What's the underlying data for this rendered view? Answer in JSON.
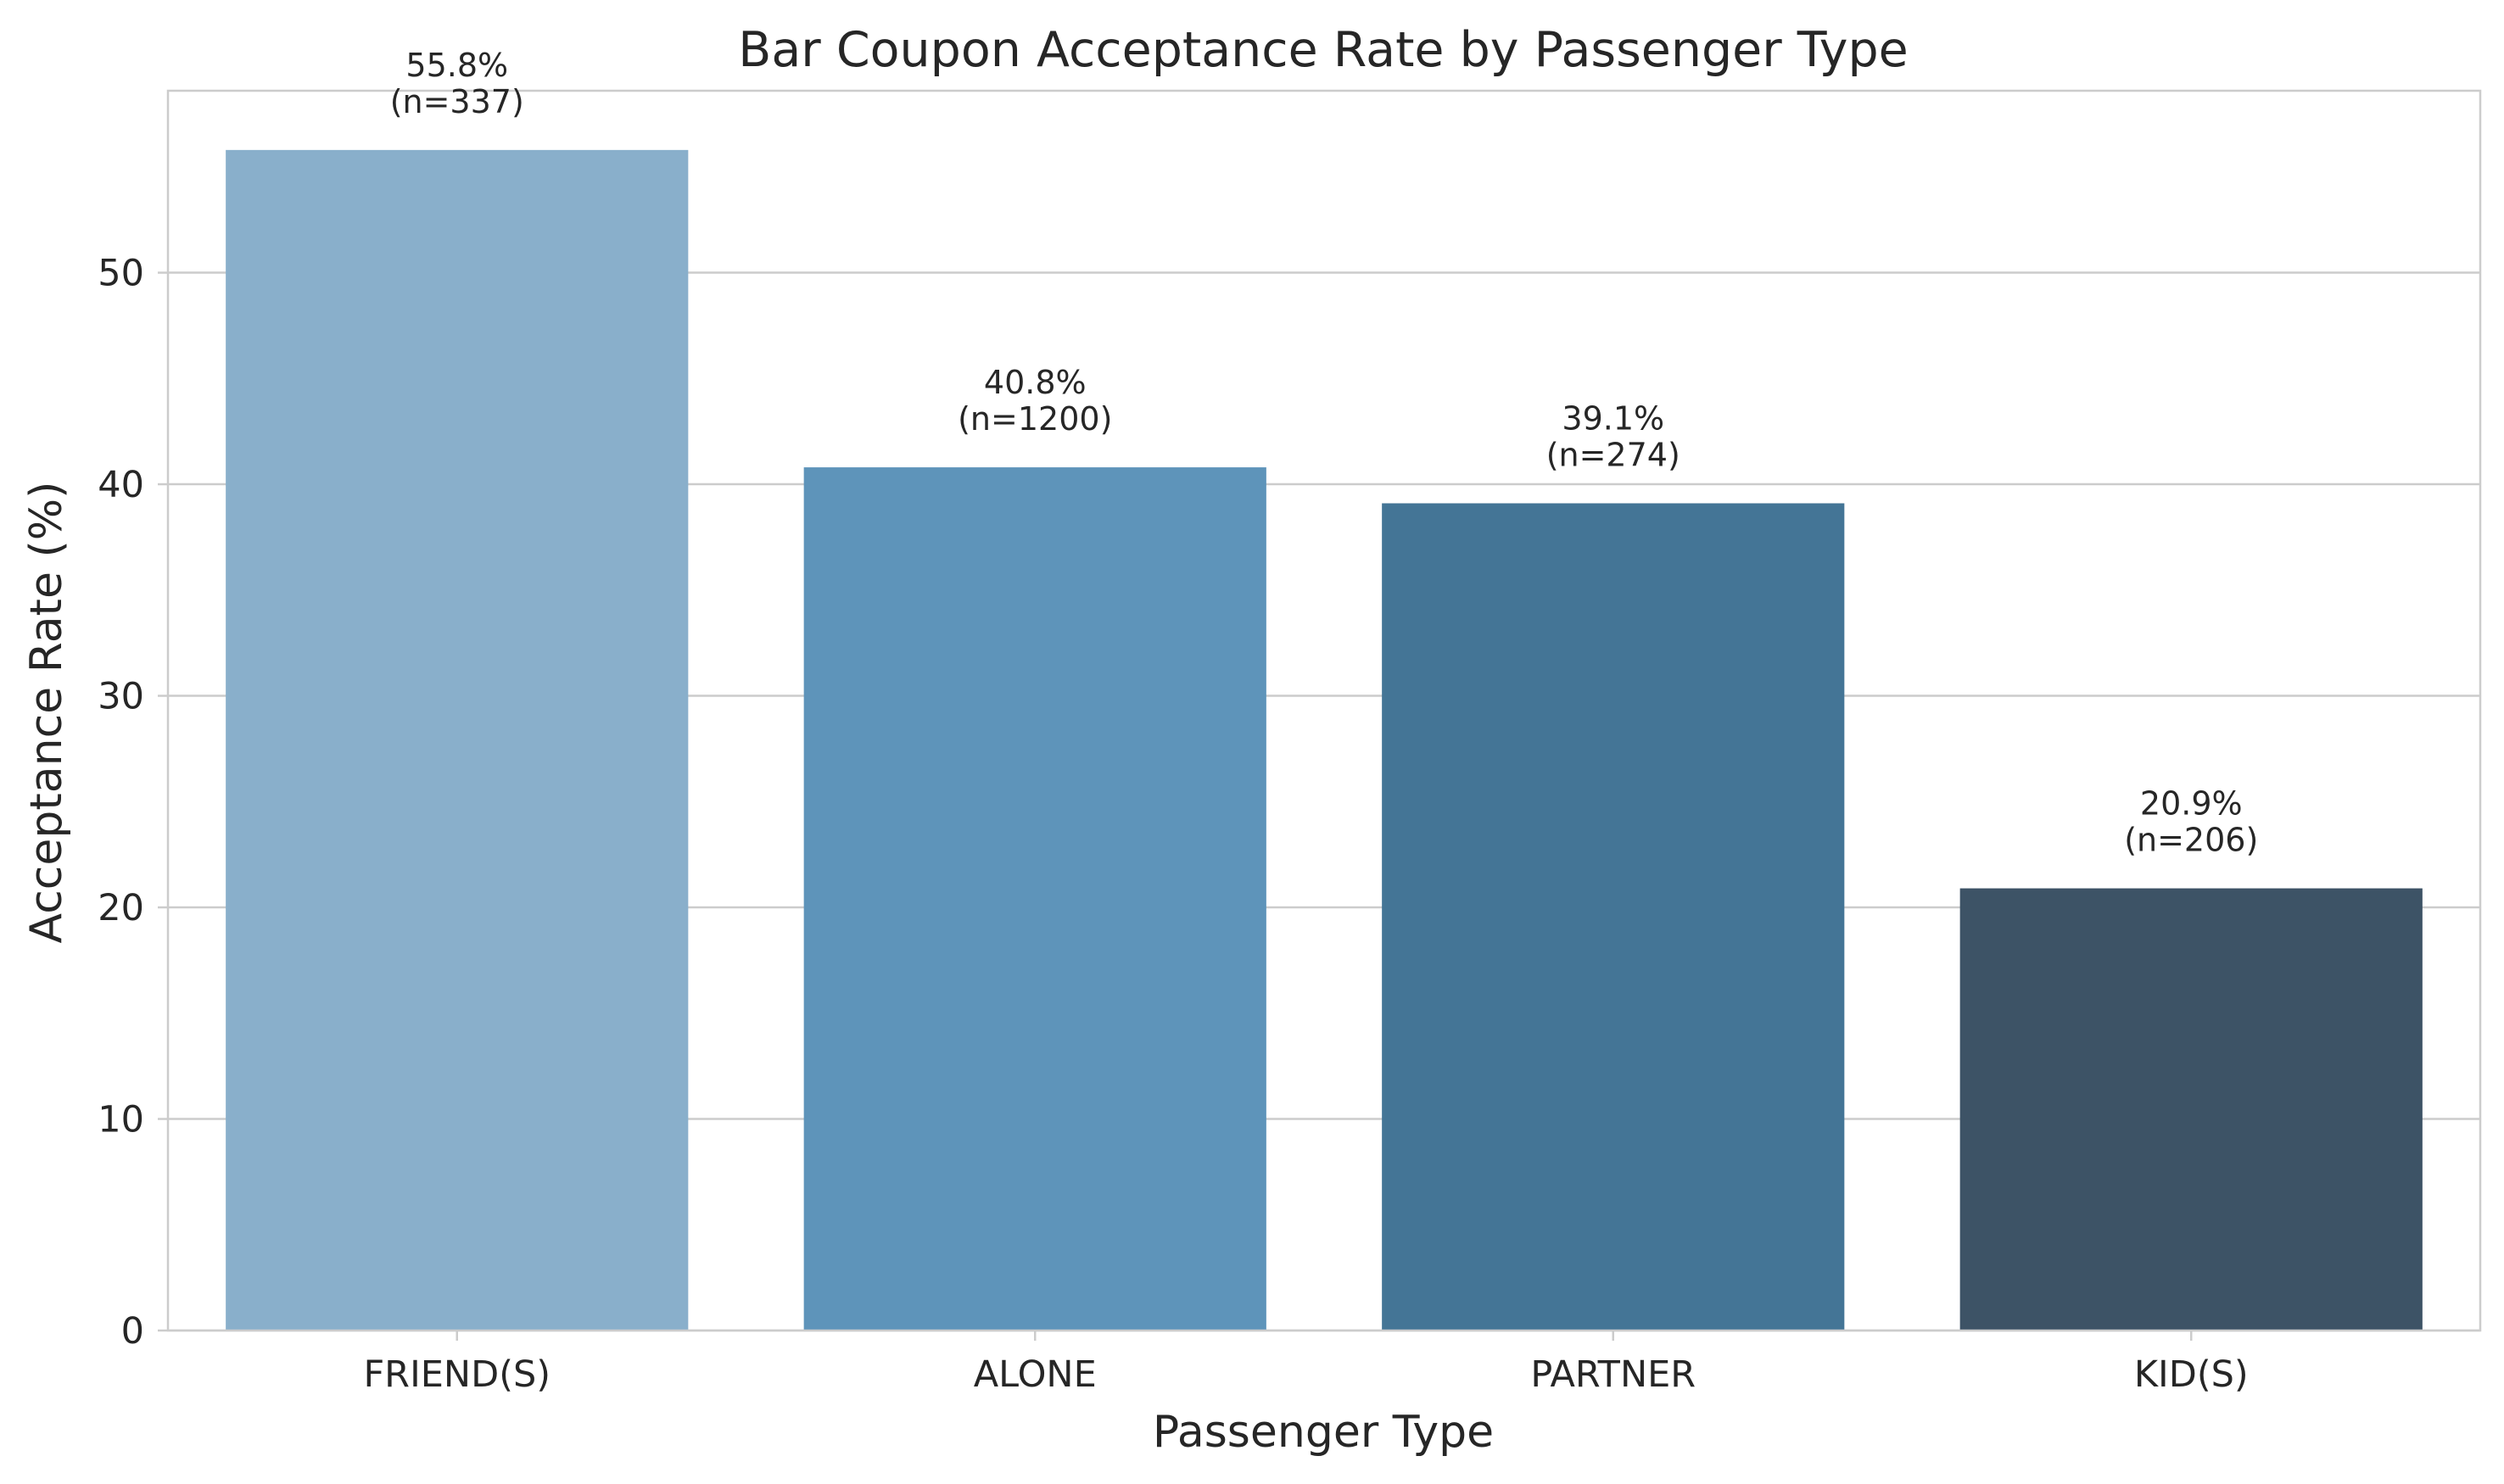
{
  "chart_data": {
    "type": "bar",
    "title": "Bar Coupon Acceptance Rate by Passenger Type",
    "xlabel": "Passenger Type",
    "ylabel": "Acceptance Rate (%)",
    "categories": [
      "FRIEND(S)",
      "ALONE",
      "PARTNER",
      "KID(S)"
    ],
    "values": [
      55.8,
      40.8,
      39.1,
      20.9
    ],
    "value_labels": [
      "55.8%",
      "40.8%",
      "39.1%",
      "20.9%"
    ],
    "count_labels": [
      "(n=337)",
      "(n=1200)",
      "(n=274)",
      "(n=206)"
    ],
    "colors": [
      "#89afcb",
      "#5e94ba",
      "#447596",
      "#3d5366"
    ],
    "ylim": [
      0,
      58.6
    ],
    "yticks": [
      0,
      10,
      20,
      30,
      40,
      50
    ],
    "grid": "horizontal",
    "legend": "none"
  }
}
